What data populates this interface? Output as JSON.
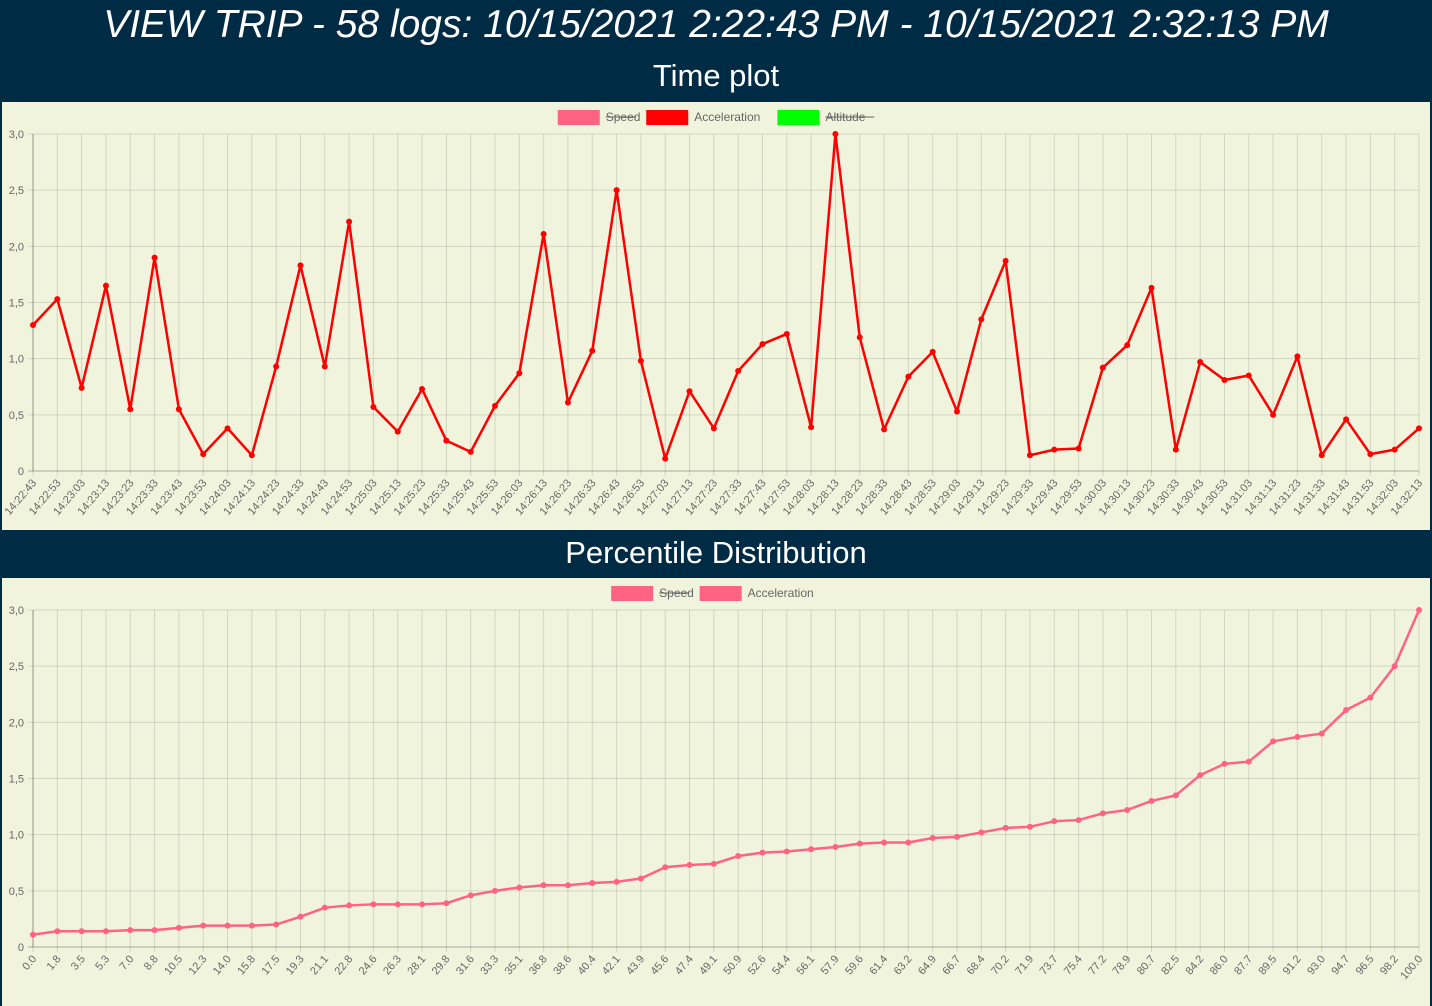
{
  "page": {
    "title": "VIEW TRIP - 58 logs: 10/15/2021 2:22:43 PM - 10/15/2021 2:32:13 PM"
  },
  "sections": {
    "time_plot_heading": "Time plot",
    "percentile_heading": "Percentile Distribution"
  },
  "colors": {
    "header_bg": "#002b45",
    "chart_bg": "#f0f4dc",
    "speed": "#ff6384",
    "acceleration": "#ff0000",
    "altitude": "#00ff00",
    "percentile_line": "#ff6384"
  },
  "chart_data": [
    {
      "type": "line",
      "legend": [
        {
          "label": "Speed",
          "color": "#ff6384",
          "hidden": true
        },
        {
          "label": "Acceleration",
          "color": "#ff0000",
          "hidden": false
        },
        {
          "label": "Altitude",
          "color": "#00ff00",
          "hidden": true
        }
      ],
      "legend_position": "top",
      "grid": true,
      "ylim": [
        0,
        3.0
      ],
      "yticks": [
        "0",
        "0,5",
        "1,0",
        "1,5",
        "2,0",
        "2,5",
        "3,0"
      ],
      "x": [
        "14:22:43",
        "14:22:53",
        "14:23:03",
        "14:23:13",
        "14:23:23",
        "14:23:33",
        "14:23:43",
        "14:23:53",
        "14:24:03",
        "14:24:13",
        "14:24:23",
        "14:24:33",
        "14:24:43",
        "14:24:53",
        "14:25:03",
        "14:25:13",
        "14:25:23",
        "14:25:33",
        "14:25:43",
        "14:25:53",
        "14:26:03",
        "14:26:13",
        "14:26:23",
        "14:26:33",
        "14:26:43",
        "14:26:53",
        "14:27:03",
        "14:27:13",
        "14:27:23",
        "14:27:33",
        "14:27:43",
        "14:27:53",
        "14:28:03",
        "14:28:13",
        "14:28:23",
        "14:28:33",
        "14:28:43",
        "14:28:53",
        "14:29:03",
        "14:29:13",
        "14:29:23",
        "14:29:33",
        "14:29:43",
        "14:29:53",
        "14:30:03",
        "14:30:13",
        "14:30:23",
        "14:30:33",
        "14:30:43",
        "14:30:53",
        "14:31:03",
        "14:31:13",
        "14:31:23",
        "14:31:33",
        "14:31:43",
        "14:31:53",
        "14:32:03",
        "14:32:13"
      ],
      "series": [
        {
          "name": "Acceleration",
          "values": [
            1.3,
            1.53,
            0.74,
            1.65,
            0.55,
            1.9,
            0.55,
            0.15,
            0.38,
            0.14,
            0.93,
            1.83,
            0.93,
            2.22,
            0.57,
            0.35,
            0.73,
            0.27,
            0.17,
            0.58,
            0.87,
            2.11,
            0.61,
            1.07,
            2.5,
            0.98,
            0.11,
            0.71,
            0.38,
            0.89,
            1.13,
            1.22,
            0.39,
            3.0,
            1.19,
            0.37,
            0.84,
            1.06,
            0.53,
            1.35,
            1.87,
            0.14,
            0.19,
            0.2,
            0.92,
            1.12,
            1.63,
            0.19,
            0.97,
            0.81,
            0.85,
            0.5,
            1.02,
            0.14,
            0.46,
            0.15,
            0.19,
            0.38
          ]
        }
      ]
    },
    {
      "type": "line",
      "legend": [
        {
          "label": "Speed",
          "color": "#ff6384",
          "hidden": true
        },
        {
          "label": "Acceleration",
          "color": "#ff6384",
          "hidden": false
        }
      ],
      "legend_position": "top",
      "grid": true,
      "ylim": [
        0,
        3.0
      ],
      "yticks": [
        "0",
        "0,5",
        "1,0",
        "1,5",
        "2,0",
        "2,5",
        "3,0"
      ],
      "x": [
        "0.0",
        "1.8",
        "3.5",
        "5.3",
        "7.0",
        "8.8",
        "10.5",
        "12.3",
        "14.0",
        "15.8",
        "17.5",
        "19.3",
        "21.1",
        "22.8",
        "24.6",
        "26.3",
        "28.1",
        "29.8",
        "31.6",
        "33.3",
        "35.1",
        "36.8",
        "38.6",
        "40.4",
        "42.1",
        "43.9",
        "45.6",
        "47.4",
        "49.1",
        "50.9",
        "52.6",
        "54.4",
        "56.1",
        "57.9",
        "59.6",
        "61.4",
        "63.2",
        "64.9",
        "66.7",
        "68.4",
        "70.2",
        "71.9",
        "73.7",
        "75.4",
        "77.2",
        "78.9",
        "80.7",
        "82.5",
        "84.2",
        "86.0",
        "87.7",
        "89.5",
        "91.2",
        "93.0",
        "94.7",
        "96.5",
        "98.2",
        "100.0"
      ],
      "series": [
        {
          "name": "Acceleration",
          "values": [
            0.11,
            0.14,
            0.14,
            0.14,
            0.15,
            0.15,
            0.17,
            0.19,
            0.19,
            0.19,
            0.2,
            0.27,
            0.35,
            0.37,
            0.38,
            0.38,
            0.38,
            0.39,
            0.46,
            0.5,
            0.53,
            0.55,
            0.55,
            0.57,
            0.58,
            0.61,
            0.71,
            0.73,
            0.74,
            0.81,
            0.84,
            0.85,
            0.87,
            0.89,
            0.92,
            0.93,
            0.93,
            0.97,
            0.98,
            1.02,
            1.06,
            1.07,
            1.12,
            1.13,
            1.19,
            1.22,
            1.3,
            1.35,
            1.53,
            1.63,
            1.65,
            1.83,
            1.87,
            1.9,
            2.11,
            2.22,
            2.5,
            3.0
          ]
        }
      ]
    }
  ]
}
